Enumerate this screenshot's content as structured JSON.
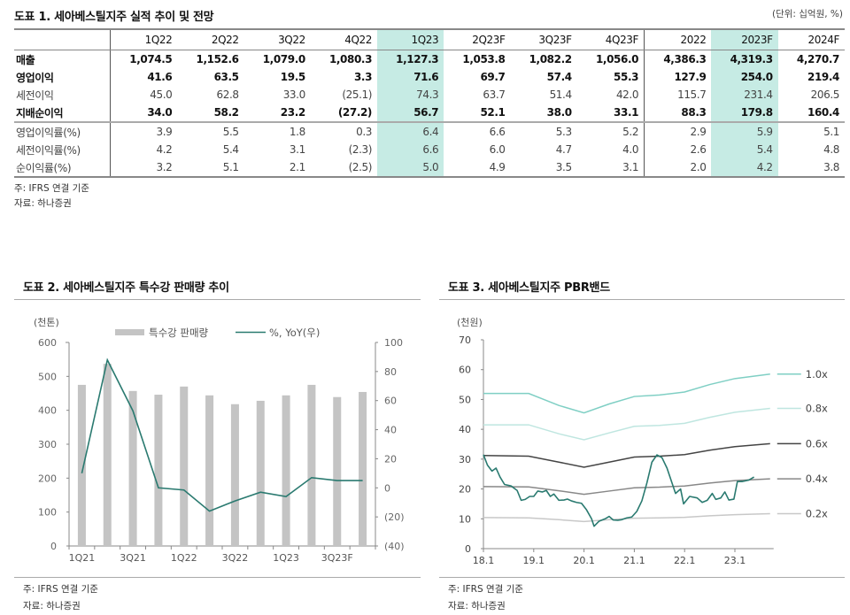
{
  "table1": {
    "title": "도표 1. 세아베스틸지주 실적 추이 및 전망",
    "unit": "(단위: 십억원, %)",
    "columns": [
      "1Q22",
      "2Q22",
      "3Q22",
      "4Q22",
      "1Q23",
      "2Q23F",
      "3Q23F",
      "4Q23F",
      "2022",
      "2023F",
      "2024F"
    ],
    "highlight_columns": [
      "1Q23",
      "2023F"
    ],
    "highlight_color": "#c6ebe4",
    "rows": [
      {
        "label": "매출",
        "style": "bold",
        "values": [
          "1,074.5",
          "1,152.6",
          "1,079.0",
          "1,080.3",
          "1,127.3",
          "1,053.8",
          "1,082.2",
          "1,056.0",
          "4,386.3",
          "4,319.3",
          "4,270.7"
        ]
      },
      {
        "label": "영업이익",
        "style": "bold",
        "values": [
          "41.6",
          "63.5",
          "19.5",
          "3.3",
          "71.6",
          "69.7",
          "57.4",
          "55.3",
          "127.9",
          "254.0",
          "219.4"
        ]
      },
      {
        "label": "세전이익",
        "style": "light",
        "values": [
          "45.0",
          "62.8",
          "33.0",
          "(25.1)",
          "74.3",
          "63.7",
          "51.4",
          "42.0",
          "115.7",
          "231.4",
          "206.5"
        ]
      },
      {
        "label": "지배순이익",
        "style": "bold",
        "values": [
          "34.0",
          "58.2",
          "23.2",
          "(27.2)",
          "56.7",
          "52.1",
          "38.0",
          "33.1",
          "88.3",
          "179.8",
          "160.4"
        ]
      },
      {
        "label": "영업이익률(%)",
        "style": "light",
        "values": [
          "3.9",
          "5.5",
          "1.8",
          "0.3",
          "6.4",
          "6.6",
          "5.3",
          "5.2",
          "2.9",
          "5.9",
          "5.1"
        ]
      },
      {
        "label": "세전이익률(%)",
        "style": "light",
        "values": [
          "4.2",
          "5.4",
          "3.1",
          "(2.3)",
          "6.6",
          "6.0",
          "4.7",
          "4.0",
          "2.6",
          "5.4",
          "4.8"
        ]
      },
      {
        "label": "순이익률(%)",
        "style": "light",
        "values": [
          "3.2",
          "5.1",
          "2.1",
          "(2.5)",
          "5.0",
          "4.9",
          "3.5",
          "3.1",
          "2.0",
          "4.2",
          "3.8"
        ]
      }
    ],
    "note": "주: IFRS 연결 기준",
    "source": "자료: 하나증권"
  },
  "chart_data": [
    {
      "type": "bar",
      "title": "도표 2. 세아베스틸지주 특수강 판매량 추이",
      "ylabel": "(천톤)",
      "categories": [
        "1Q21",
        "2Q21",
        "3Q21",
        "4Q21",
        "1Q22",
        "2Q22",
        "3Q22",
        "4Q22",
        "1Q23",
        "2Q23",
        "3Q23F",
        "4Q23F"
      ],
      "x_tick_labels": [
        "1Q21",
        "3Q21",
        "1Q22",
        "3Q22",
        "1Q23",
        "3Q23F"
      ],
      "ylim": [
        0,
        600
      ],
      "y_ticks": [
        "0",
        "100",
        "200",
        "300",
        "400",
        "500",
        "600"
      ],
      "y2lim": [
        -40,
        100
      ],
      "y2_ticks": [
        "(40)",
        "(20)",
        "0",
        "20",
        "40",
        "60",
        "80",
        "100"
      ],
      "series": [
        {
          "name": "특수강 판매량",
          "type": "bar",
          "axis": "left",
          "color": "#c4c4c4",
          "values": [
            475,
            537,
            457,
            446,
            470,
            444,
            418,
            428,
            444,
            475,
            439,
            454
          ]
        },
        {
          "name": "%, YoY(우)",
          "type": "line",
          "axis": "right",
          "color": "#2a7a70",
          "values": [
            10,
            88,
            53,
            0,
            -1.5,
            -16,
            -9,
            -3,
            -6,
            7,
            5,
            5
          ]
        }
      ],
      "legend_position": "top-center",
      "note": "주: IFRS 연결 기준",
      "source": "자료: 하나증권"
    },
    {
      "type": "line",
      "title": "도표 3. 세아베스틸지주 PBR밴드",
      "ylabel": "(천원)",
      "ylim": [
        0,
        70
      ],
      "y_ticks": [
        "0",
        "10",
        "20",
        "30",
        "40",
        "50",
        "60",
        "70"
      ],
      "x_range": [
        2018.0,
        2023.7
      ],
      "x_ticks": [
        {
          "value": 2018.0,
          "label": "18.1"
        },
        {
          "value": 2019.0,
          "label": "19.1"
        },
        {
          "value": 2020.0,
          "label": "20.1"
        },
        {
          "value": 2021.0,
          "label": "21.1"
        },
        {
          "value": 2022.0,
          "label": "22.1"
        },
        {
          "value": 2023.0,
          "label": "23.1"
        }
      ],
      "bands": [
        {
          "name": "1.0x",
          "color": "#7fcfc4",
          "points": [
            [
              2018.0,
              52
            ],
            [
              2018.9,
              52
            ],
            [
              2019.5,
              48
            ],
            [
              2020.0,
              45.5
            ],
            [
              2020.5,
              48.5
            ],
            [
              2021.0,
              51
            ],
            [
              2021.5,
              51.5
            ],
            [
              2022.0,
              52.5
            ],
            [
              2022.5,
              55
            ],
            [
              2023.0,
              57
            ],
            [
              2023.7,
              58.5
            ]
          ]
        },
        {
          "name": "0.8x",
          "color": "#bfe6e0",
          "points": [
            [
              2018.0,
              41.5
            ],
            [
              2018.9,
              41.5
            ],
            [
              2019.5,
              38.5
            ],
            [
              2020.0,
              36.5
            ],
            [
              2020.5,
              38.8
            ],
            [
              2021.0,
              41
            ],
            [
              2021.5,
              41.3
            ],
            [
              2022.0,
              42
            ],
            [
              2022.5,
              44
            ],
            [
              2023.0,
              45.7
            ],
            [
              2023.7,
              47
            ]
          ]
        },
        {
          "name": "0.6x",
          "color": "#444444",
          "points": [
            [
              2018.0,
              31.2
            ],
            [
              2018.9,
              31
            ],
            [
              2019.5,
              29
            ],
            [
              2020.0,
              27.3
            ],
            [
              2020.5,
              29
            ],
            [
              2021.0,
              30.7
            ],
            [
              2021.5,
              31
            ],
            [
              2022.0,
              31.5
            ],
            [
              2022.5,
              33
            ],
            [
              2023.0,
              34.2
            ],
            [
              2023.7,
              35.2
            ]
          ]
        },
        {
          "name": "0.4x",
          "color": "#888888",
          "points": [
            [
              2018.0,
              20.8
            ],
            [
              2018.9,
              20.7
            ],
            [
              2019.5,
              19.4
            ],
            [
              2020.0,
              18.2
            ],
            [
              2020.5,
              19.3
            ],
            [
              2021.0,
              20.4
            ],
            [
              2021.5,
              20.6
            ],
            [
              2022.0,
              21
            ],
            [
              2022.5,
              22
            ],
            [
              2023.0,
              22.8
            ],
            [
              2023.7,
              23.4
            ]
          ]
        },
        {
          "name": "0.2x",
          "color": "#c8c8c8",
          "points": [
            [
              2018.0,
              10.4
            ],
            [
              2018.9,
              10.3
            ],
            [
              2019.5,
              9.7
            ],
            [
              2020.0,
              9.1
            ],
            [
              2020.5,
              9.7
            ],
            [
              2021.0,
              10.2
            ],
            [
              2021.5,
              10.3
            ],
            [
              2022.0,
              10.5
            ],
            [
              2022.5,
              11
            ],
            [
              2023.0,
              11.4
            ],
            [
              2023.7,
              11.7
            ]
          ]
        }
      ],
      "price": {
        "name": "주가",
        "color": "#2a7a70",
        "points": [
          [
            2018.0,
            31.5
          ],
          [
            2018.08,
            28
          ],
          [
            2018.17,
            26
          ],
          [
            2018.25,
            27
          ],
          [
            2018.33,
            24
          ],
          [
            2018.42,
            21.5
          ],
          [
            2018.55,
            21
          ],
          [
            2018.67,
            19.5
          ],
          [
            2018.75,
            16.2
          ],
          [
            2018.83,
            16.5
          ],
          [
            2018.92,
            17.5
          ],
          [
            2019.0,
            17.5
          ],
          [
            2019.08,
            19.3
          ],
          [
            2019.17,
            19
          ],
          [
            2019.25,
            19.5
          ],
          [
            2019.33,
            17.5
          ],
          [
            2019.4,
            18.3
          ],
          [
            2019.5,
            16.2
          ],
          [
            2019.6,
            16.3
          ],
          [
            2019.67,
            16.6
          ],
          [
            2019.75,
            16
          ],
          [
            2019.85,
            15.5
          ],
          [
            2019.95,
            15.2
          ],
          [
            2020.05,
            13
          ],
          [
            2020.15,
            10
          ],
          [
            2020.2,
            7.5
          ],
          [
            2020.3,
            9.2
          ],
          [
            2020.42,
            10
          ],
          [
            2020.5,
            10.8
          ],
          [
            2020.58,
            9.6
          ],
          [
            2020.67,
            9.5
          ],
          [
            2020.75,
            9.7
          ],
          [
            2020.85,
            10.3
          ],
          [
            2020.95,
            10.6
          ],
          [
            2021.05,
            12.5
          ],
          [
            2021.15,
            16
          ],
          [
            2021.25,
            22
          ],
          [
            2021.35,
            29
          ],
          [
            2021.45,
            31.4
          ],
          [
            2021.55,
            30.5
          ],
          [
            2021.65,
            27
          ],
          [
            2021.75,
            22
          ],
          [
            2021.82,
            18.5
          ],
          [
            2021.92,
            20
          ],
          [
            2021.98,
            15
          ],
          [
            2022.1,
            17.5
          ],
          [
            2022.25,
            17
          ],
          [
            2022.35,
            15.5
          ],
          [
            2022.45,
            16.2
          ],
          [
            2022.55,
            18.5
          ],
          [
            2022.62,
            16.5
          ],
          [
            2022.72,
            17
          ],
          [
            2022.8,
            19
          ],
          [
            2022.88,
            16.3
          ],
          [
            2022.98,
            16.6
          ],
          [
            2023.05,
            22.5
          ],
          [
            2023.15,
            22.5
          ],
          [
            2023.28,
            23
          ],
          [
            2023.38,
            24
          ]
        ]
      },
      "note": "주: IFRS 연결 기준",
      "source": "자료: 하나증권"
    }
  ]
}
